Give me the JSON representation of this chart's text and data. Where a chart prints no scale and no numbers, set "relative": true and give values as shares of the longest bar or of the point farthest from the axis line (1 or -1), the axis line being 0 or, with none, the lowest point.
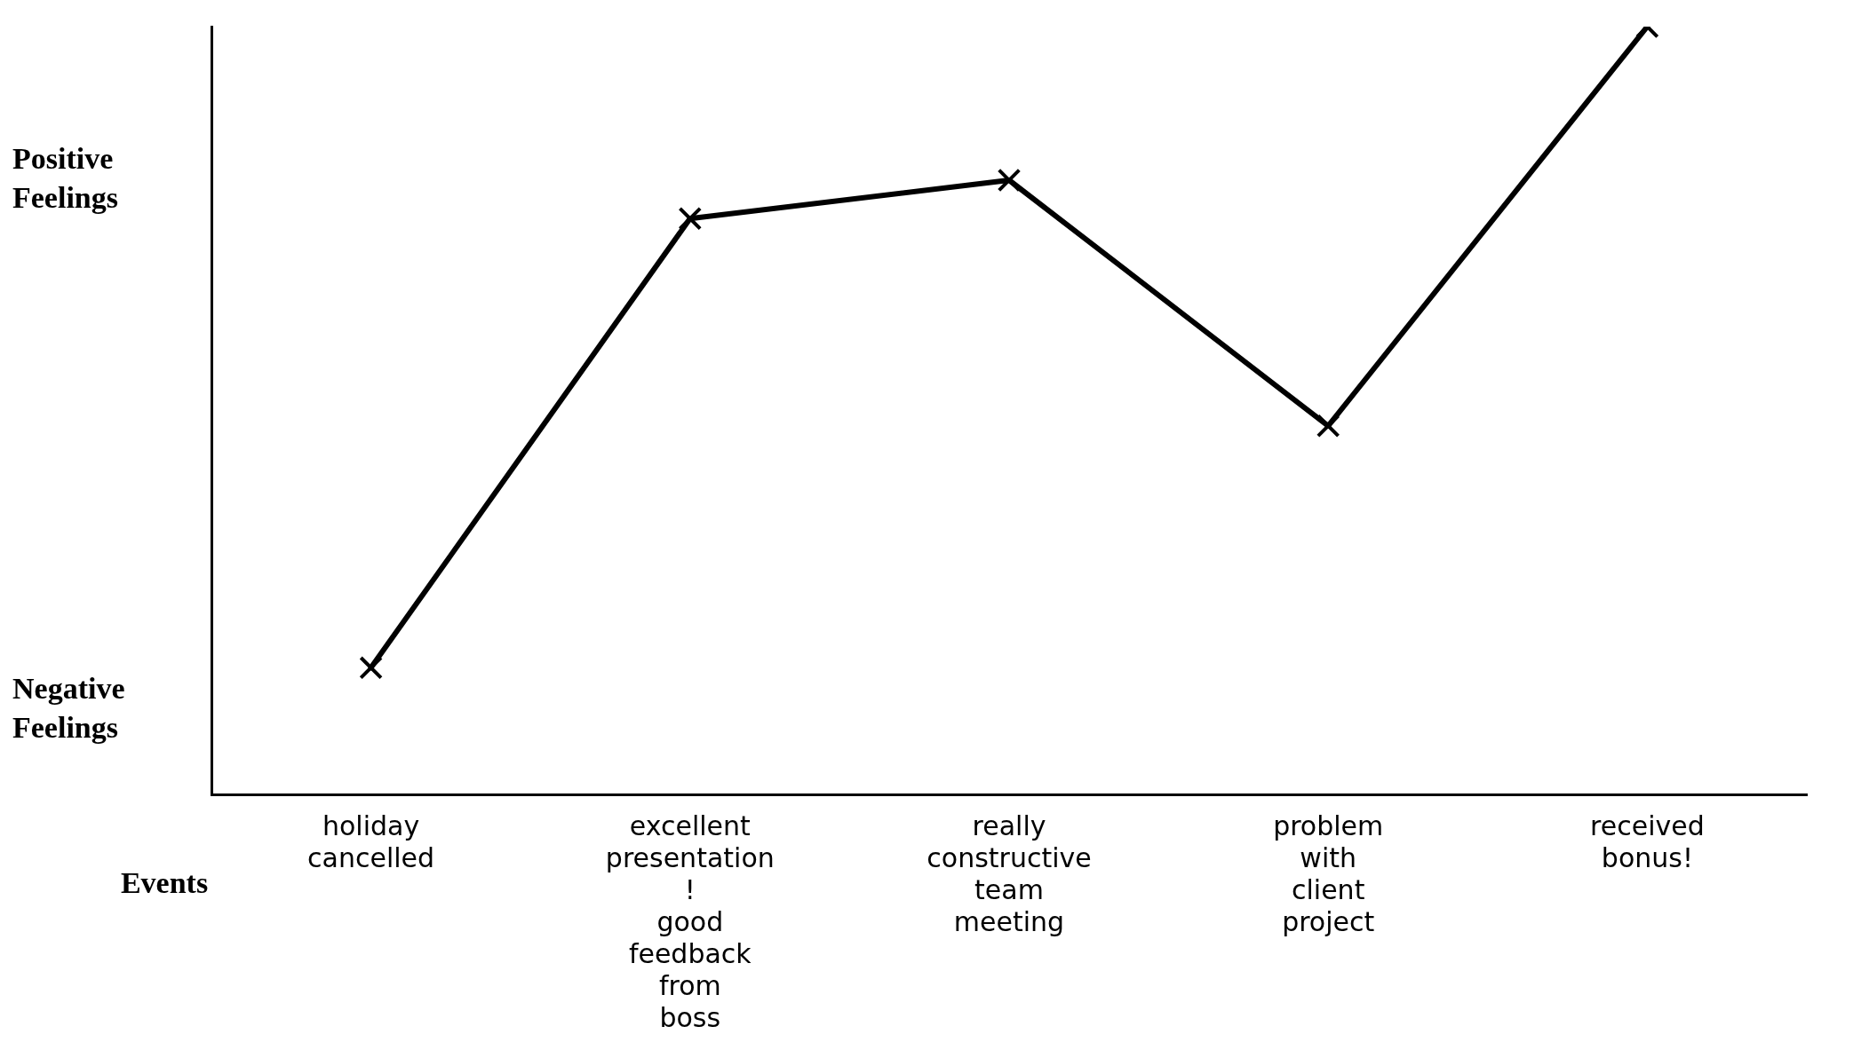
{
  "chart_data": {
    "type": "line",
    "relative": true,
    "xlabel": "Events",
    "categories": [
      "holiday cancelled",
      "excellent presentation ! good feedback from boss",
      "really constructive team meeting",
      "problem with client project",
      "received bonus!"
    ],
    "series": [
      {
        "color": "#000000",
        "values": [
          0.165,
          0.75,
          0.8,
          0.48,
          1
        ]
      }
    ],
    "marker": "cross",
    "line_style": "solid",
    "grid": false,
    "legend": false,
    "annotations": [
      "Positive Feelings",
      "Negative Feelings"
    ]
  }
}
